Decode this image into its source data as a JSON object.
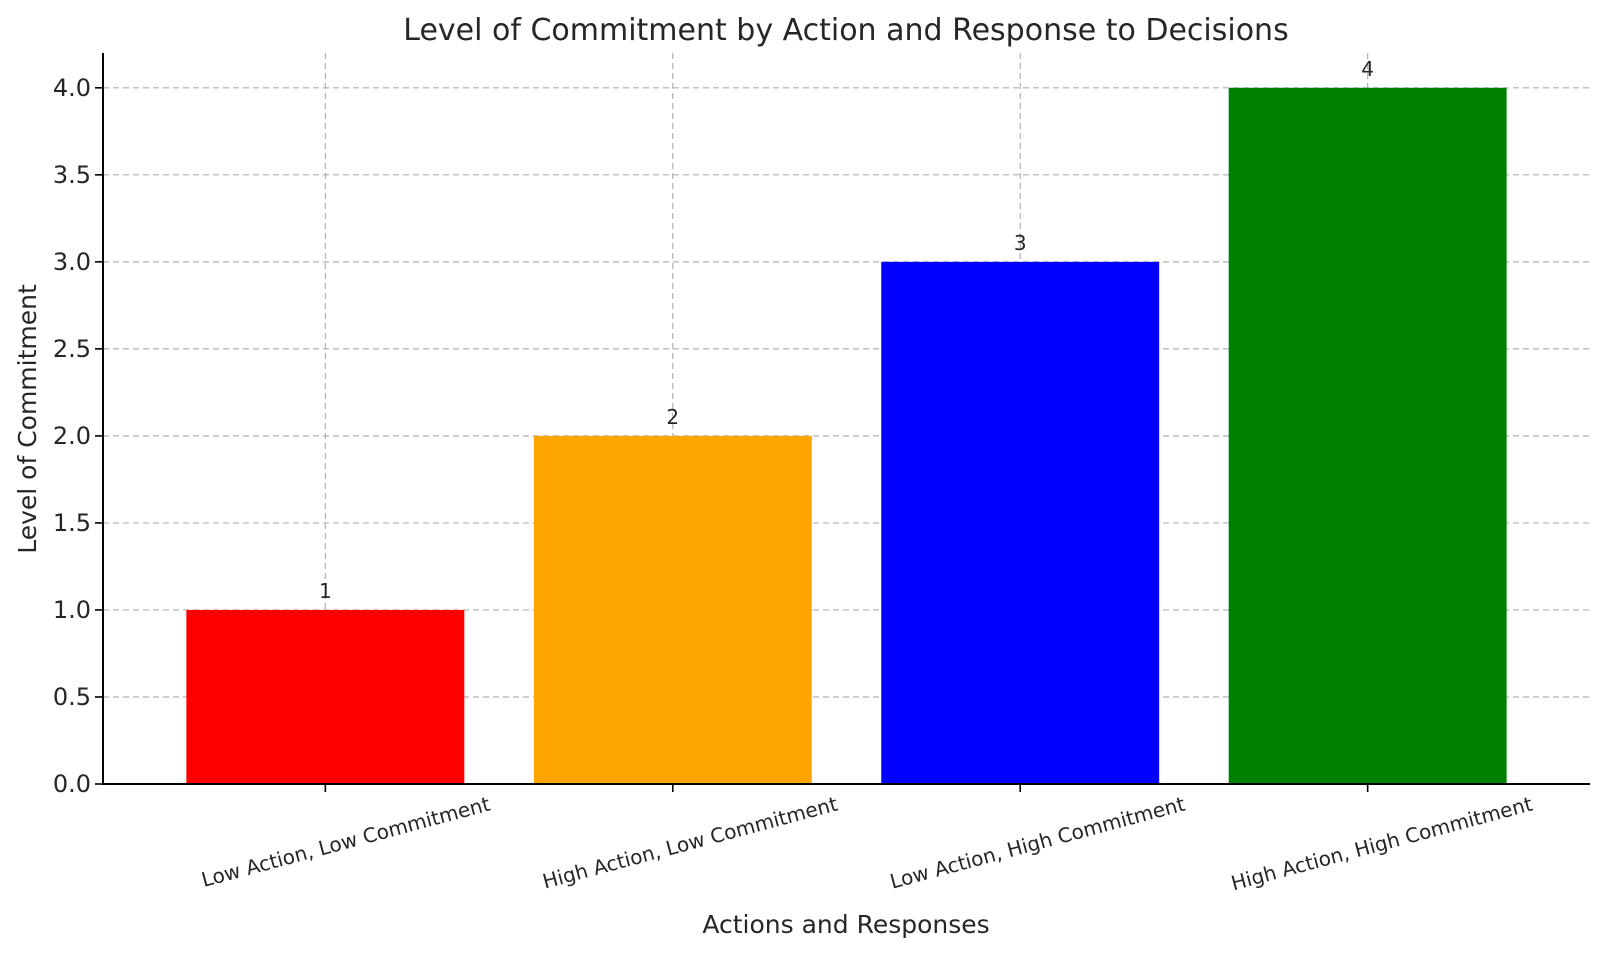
{
  "chart_data": {
    "type": "bar",
    "title": "Level of Commitment by Action and Response to Decisions",
    "xlabel": "Actions and Responses",
    "ylabel": "Level of Commitment",
    "categories": [
      "Low Action, Low Commitment",
      "High Action, Low Commitment",
      "Low Action, High Commitment",
      "High Action, High Commitment"
    ],
    "values": [
      1,
      2,
      3,
      4
    ],
    "value_labels": [
      "1",
      "2",
      "3",
      "4"
    ],
    "colors": [
      "#ff0000",
      "#ffa500",
      "#0000ff",
      "#008000"
    ],
    "ylim": [
      0,
      4.2
    ],
    "yticks": [
      0.0,
      0.5,
      1.0,
      1.5,
      2.0,
      2.5,
      3.0,
      3.5,
      4.0
    ],
    "ytick_labels": [
      "0.0",
      "0.5",
      "1.0",
      "1.5",
      "2.0",
      "2.5",
      "3.0",
      "3.5",
      "4.0"
    ],
    "grid": true,
    "xtick_rotation_deg": 15
  }
}
